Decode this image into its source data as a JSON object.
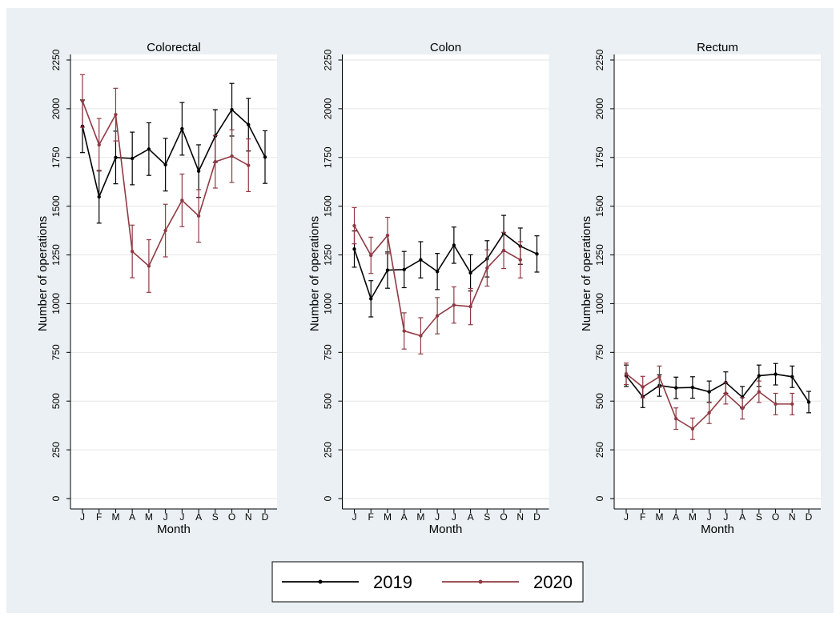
{
  "chart_data": [
    {
      "type": "line",
      "title": "Colorectal",
      "xlabel": "Month",
      "ylabel": "Number of operations",
      "categories": [
        "J",
        "F",
        "M",
        "A",
        "M",
        "J",
        "J",
        "A",
        "S",
        "O",
        "N",
        "D"
      ],
      "ylim": [
        0,
        2250
      ],
      "yticks": [
        0,
        250,
        500,
        750,
        1000,
        1250,
        1500,
        1750,
        2000,
        2250
      ],
      "grid": true,
      "series": [
        {
          "name": "2019",
          "color": "#000000",
          "values": [
            1910,
            1548,
            1750,
            1745,
            1793,
            1713,
            1897,
            1680,
            1860,
            1995,
            1918,
            1752
          ],
          "errors": [
            135,
            135,
            135,
            135,
            135,
            135,
            135,
            135,
            135,
            135,
            135,
            135
          ]
        },
        {
          "name": "2020",
          "color": "#903a43",
          "values": [
            2040,
            1815,
            1970,
            1268,
            1193,
            1375,
            1530,
            1450,
            1728,
            1757,
            1710,
            null
          ],
          "errors": [
            135,
            135,
            135,
            135,
            135,
            135,
            135,
            135,
            135,
            135,
            135,
            null
          ]
        }
      ]
    },
    {
      "type": "line",
      "title": "Colon",
      "xlabel": "Month",
      "ylabel": "Number of operations",
      "categories": [
        "J",
        "F",
        "M",
        "A",
        "M",
        "J",
        "J",
        "A",
        "S",
        "O",
        "N",
        "D"
      ],
      "ylim": [
        0,
        2250
      ],
      "yticks": [
        0,
        250,
        500,
        750,
        1000,
        1250,
        1500,
        1750,
        2000,
        2250
      ],
      "grid": true,
      "series": [
        {
          "name": "2019",
          "color": "#000000",
          "values": [
            1280,
            1025,
            1172,
            1175,
            1225,
            1165,
            1300,
            1158,
            1230,
            1360,
            1295,
            1255
          ],
          "errors": [
            93,
            93,
            93,
            93,
            93,
            93,
            93,
            93,
            93,
            93,
            93,
            93
          ]
        },
        {
          "name": "2020",
          "color": "#903a43",
          "values": [
            1400,
            1248,
            1350,
            860,
            835,
            938,
            993,
            985,
            1183,
            1273,
            1225,
            null
          ],
          "errors": [
            93,
            93,
            93,
            93,
            93,
            93,
            93,
            93,
            93,
            93,
            93,
            null
          ]
        }
      ]
    },
    {
      "type": "line",
      "title": "Rectum",
      "xlabel": "Month",
      "ylabel": "Number of operations",
      "categories": [
        "J",
        "F",
        "M",
        "A",
        "M",
        "J",
        "J",
        "A",
        "S",
        "O",
        "N",
        "D"
      ],
      "ylim": [
        0,
        2250
      ],
      "yticks": [
        0,
        250,
        500,
        750,
        1000,
        1250,
        1500,
        1750,
        2000,
        2250
      ],
      "grid": true,
      "series": [
        {
          "name": "2019",
          "color": "#000000",
          "values": [
            630,
            522,
            580,
            568,
            570,
            548,
            595,
            520,
            630,
            638,
            625,
            495
          ],
          "errors": [
            55,
            55,
            55,
            55,
            55,
            55,
            55,
            55,
            55,
            55,
            55,
            55
          ]
        },
        {
          "name": "2020",
          "color": "#903a43",
          "values": [
            640,
            572,
            625,
            410,
            358,
            440,
            540,
            463,
            548,
            485,
            485,
            null
          ],
          "errors": [
            55,
            55,
            55,
            55,
            55,
            55,
            55,
            55,
            55,
            55,
            55,
            null
          ]
        }
      ]
    }
  ]
}
